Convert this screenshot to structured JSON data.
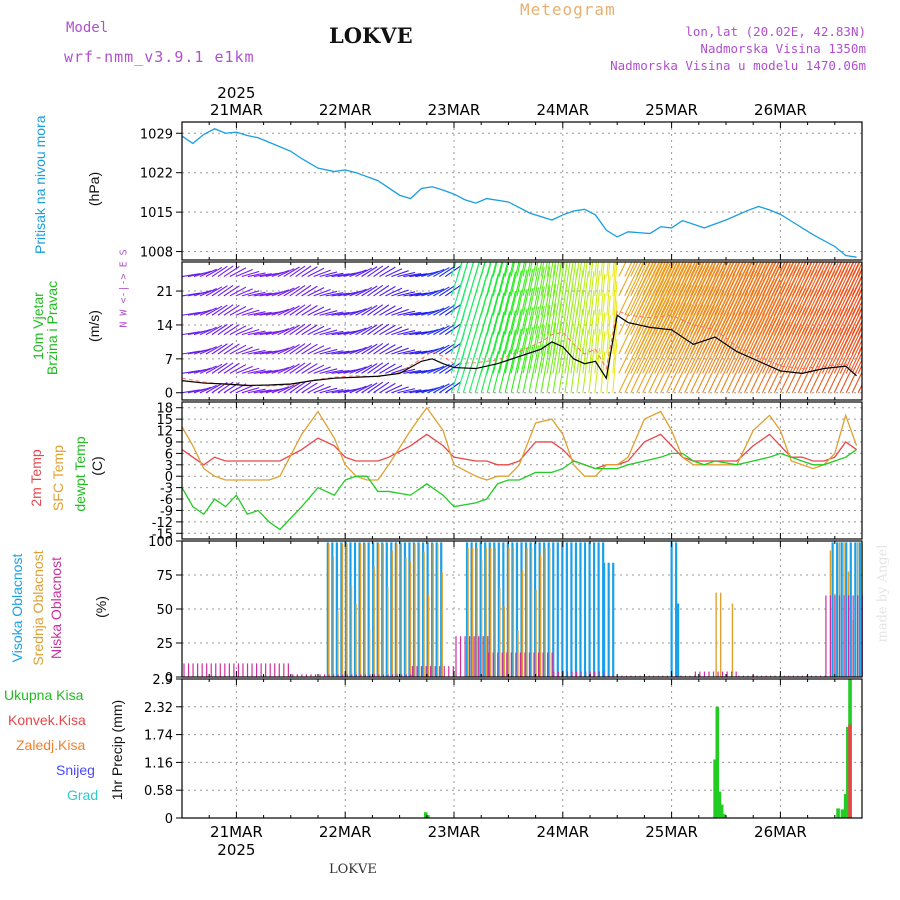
{
  "header": {
    "model_label": "Model",
    "model_name": "wrf-nmm_v3.9.1  e1km",
    "station": "LOKVE",
    "title": "Meteogram",
    "coords": "lon,lat (20.02E, 42.83N)",
    "elevation": "Nadmorska Visina 1350m",
    "model_elevation": "Nadmorska Visina u modelu 1470.06m"
  },
  "footer": {
    "station": "LOKVE",
    "credit": "made by Angel"
  },
  "time_axis": {
    "year": "2025",
    "days": [
      "21MAR",
      "22MAR",
      "23MAR",
      "24MAR",
      "25MAR",
      "26MAR"
    ]
  },
  "colors": {
    "pressure": "#1a9ee0",
    "temp2m": "#e8474a",
    "sfc_temp": "#e0a030",
    "dewpoint": "#22cc22",
    "high_cloud": "#1aa0e8",
    "mid_cloud": "#e0a030",
    "low_cloud": "#cc2ea0",
    "total_precip": "#22cc22",
    "conv_precip": "#e8474a",
    "freezing_rain": "#f08030",
    "snow": "#4848ff",
    "graupel": "#30c8c8",
    "header_purple": "#b050d0",
    "header_orange": "#e8b070"
  },
  "chart_data": [
    {
      "type": "line",
      "panel": "pressure",
      "ylabel": [
        "Pritisak na nivou mora",
        "(hPa)"
      ],
      "yticks": [
        1008,
        1015,
        1022,
        1029
      ],
      "ylim": [
        1006.5,
        1031
      ],
      "x_unit": "days since 21MAR 00UTC",
      "x": [
        -0.5,
        -0.4,
        -0.3,
        -0.2,
        -0.1,
        0.0,
        0.1,
        0.2,
        0.3,
        0.5,
        0.6,
        0.75,
        0.9,
        1.0,
        1.1,
        1.3,
        1.5,
        1.6,
        1.7,
        1.8,
        1.9,
        2.0,
        2.1,
        2.2,
        2.3,
        2.5,
        2.7,
        2.9,
        3.0,
        3.1,
        3.2,
        3.3,
        3.4,
        3.5,
        3.6,
        3.8,
        3.9,
        4.0,
        4.1,
        4.3,
        4.5,
        4.7,
        4.8,
        4.9,
        5.0,
        5.1,
        5.3,
        5.5,
        5.6,
        5.7
      ],
      "values": [
        1028.5,
        1027.2,
        1028.8,
        1029.8,
        1029.0,
        1029.2,
        1028.6,
        1028.2,
        1027.4,
        1025.8,
        1024.5,
        1022.8,
        1022.2,
        1022.5,
        1022.0,
        1020.6,
        1018.0,
        1017.4,
        1019.2,
        1019.5,
        1018.9,
        1018.2,
        1017.2,
        1016.6,
        1017.4,
        1016.8,
        1014.8,
        1013.6,
        1014.5,
        1015.2,
        1015.5,
        1014.5,
        1011.8,
        1010.6,
        1011.5,
        1011.2,
        1012.4,
        1012.2,
        1013.5,
        1012.2,
        1013.6,
        1015.3,
        1016.0,
        1015.4,
        1014.6,
        1013.4,
        1011.0,
        1008.9,
        1007.3,
        1007.0
      ]
    },
    {
      "type": "line",
      "panel": "wind",
      "ylabel": [
        "10m Vjetar",
        "Brzina i Pravac",
        "(m/s)"
      ],
      "direction_key": "N  W <-|-> E  S",
      "yticks": [
        0,
        7,
        14,
        21
      ],
      "ylim": [
        -1.5,
        27
      ],
      "x_unit": "days since 21MAR 00UTC",
      "x": [
        -0.5,
        -0.3,
        -0.1,
        0.1,
        0.3,
        0.5,
        0.7,
        0.9,
        1.1,
        1.3,
        1.5,
        1.7,
        1.8,
        1.9,
        2.0,
        2.2,
        2.4,
        2.6,
        2.8,
        2.9,
        3.0,
        3.1,
        3.2,
        3.3,
        3.4,
        3.5,
        3.6,
        3.8,
        4.0,
        4.2,
        4.4,
        4.6,
        4.8,
        5.0,
        5.2,
        5.4,
        5.6,
        5.7
      ],
      "series": [
        {
          "name": "speed",
          "values": [
            2.5,
            2.0,
            1.8,
            1.5,
            1.6,
            1.8,
            2.5,
            3.0,
            3.2,
            3.4,
            4.0,
            6.5,
            7.0,
            6.0,
            5.2,
            5.0,
            6.0,
            7.5,
            9.0,
            10.5,
            9.5,
            7.0,
            6.0,
            6.5,
            3.0,
            16.0,
            14.5,
            13.5,
            13.0,
            10.0,
            11.5,
            8.5,
            6.5,
            4.5,
            4.0,
            5.0,
            5.5,
            3.5
          ]
        },
        {
          "name": "gust",
          "values": [
            3.0,
            2.2,
            1.7,
            1.6,
            1.4,
            1.6,
            2.6,
            3.2,
            3.5,
            3.3,
            4.2,
            7.0,
            8.5,
            7.5,
            6.0,
            6.2,
            6.8,
            8.5,
            10.5,
            12.0,
            12.5,
            10.0,
            8.0,
            9.0,
            5.0,
            17.0,
            16.0,
            15.5,
            16.0,
            14.0,
            13.0,
            9.5,
            7.5,
            5.5,
            5.0,
            5.5,
            6.0,
            4.0
          ]
        }
      ]
    },
    {
      "type": "line",
      "panel": "temperature",
      "ylabel": [
        "2m Temp",
        "SFC Temp",
        "dewpt Temp",
        "(C)"
      ],
      "yticks": [
        -15,
        -12,
        -9,
        -6,
        -3,
        0,
        3,
        6,
        9,
        12,
        15,
        18
      ],
      "ylim": [
        -16.5,
        19.5
      ],
      "x_unit": "days since 21MAR 00UTC",
      "x": [
        -0.5,
        -0.4,
        -0.3,
        -0.2,
        -0.1,
        0.0,
        0.1,
        0.2,
        0.3,
        0.4,
        0.6,
        0.75,
        0.9,
        1.0,
        1.1,
        1.2,
        1.3,
        1.4,
        1.6,
        1.75,
        1.9,
        2.0,
        2.2,
        2.3,
        2.4,
        2.5,
        2.6,
        2.75,
        2.9,
        3.0,
        3.1,
        3.2,
        3.3,
        3.4,
        3.5,
        3.6,
        3.75,
        3.9,
        4.0,
        4.1,
        4.2,
        4.3,
        4.4,
        4.6,
        4.75,
        4.9,
        5.0,
        5.1,
        5.2,
        5.3,
        5.4,
        5.5,
        5.6,
        5.7
      ],
      "series": [
        {
          "name": "2m Temp",
          "values": [
            7,
            5,
            3,
            5,
            4,
            4,
            4,
            4,
            4,
            4,
            7,
            10,
            8,
            5,
            4,
            4,
            4,
            5,
            8,
            11,
            8,
            5,
            4,
            4,
            3,
            3,
            4,
            9,
            9,
            7,
            4,
            3,
            2,
            3,
            3,
            4,
            9,
            11,
            8,
            5,
            4,
            4,
            4,
            4,
            8,
            11,
            8,
            5,
            5,
            4,
            4,
            5,
            9,
            7
          ]
        },
        {
          "name": "SFC Temp",
          "values": [
            13,
            8,
            2,
            0,
            -1,
            -1,
            -1,
            -1,
            -1,
            0,
            11,
            17,
            10,
            3,
            0,
            -1,
            -1,
            3,
            12,
            18,
            12,
            3,
            0,
            -1,
            0,
            0,
            3,
            14,
            15,
            11,
            3,
            0,
            0,
            3,
            3,
            5,
            15,
            17,
            12,
            5,
            3,
            3,
            3,
            3,
            12,
            16,
            12,
            4,
            3,
            2,
            3,
            6,
            16,
            8
          ]
        },
        {
          "name": "dewpt Temp",
          "values": [
            -3,
            -8,
            -10,
            -6,
            -8,
            -5,
            -10,
            -9,
            -12,
            -14,
            -8,
            -3,
            -5,
            -1,
            0,
            0,
            -4,
            -4,
            -5,
            -2,
            -5,
            -8,
            -7,
            -6,
            -2,
            -1,
            -1,
            1,
            1,
            2,
            4,
            3,
            2,
            2,
            2,
            3,
            4,
            5,
            6,
            6,
            4,
            3,
            4,
            3,
            4,
            5,
            6,
            5,
            4,
            3,
            3,
            4,
            5,
            7
          ]
        }
      ]
    },
    {
      "type": "bar",
      "panel": "cloud_cover",
      "ylabel": [
        "Visoka Oblacnost",
        "Srednja Oblacnost",
        "Niska Oblacnost",
        "(%)"
      ],
      "yticks": [
        0,
        25,
        50,
        75,
        100
      ],
      "ylim": [
        0,
        100
      ],
      "x_unit": "days since 21MAR 00UTC",
      "series": [
        {
          "name": "Visoka Oblacnost",
          "ranges": [
            [
              0.84,
              1.92,
              99
            ],
            [
              2.12,
              3.38,
              99
            ],
            [
              3.38,
              3.48,
              84
            ],
            [
              4.0,
              4.06,
              99
            ],
            [
              4.06,
              4.1,
              54
            ],
            [
              5.48,
              5.75,
              99
            ]
          ]
        },
        {
          "name": "Srednja Oblacnost",
          "ranges": [
            [
              0.84,
              1.92,
              98
            ],
            [
              2.12,
              2.9,
              95
            ],
            [
              4.4,
              4.46,
              62
            ],
            [
              4.55,
              4.58,
              54
            ],
            [
              5.45,
              5.75,
              99
            ]
          ]
        },
        {
          "name": "Niska Oblacnost",
          "ranges": [
            [
              -0.5,
              0.5,
              10
            ],
            [
              0.5,
              1.6,
              2
            ],
            [
              1.6,
              2.0,
              8
            ],
            [
              2.0,
              2.3,
              30
            ],
            [
              2.3,
              2.9,
              18
            ],
            [
              2.9,
              3.4,
              4
            ],
            [
              3.4,
              4.2,
              1
            ],
            [
              4.2,
              4.6,
              4
            ],
            [
              4.6,
              5.4,
              1
            ],
            [
              5.4,
              5.75,
              60
            ]
          ]
        }
      ]
    },
    {
      "type": "bar",
      "panel": "precipitation",
      "ylabel": [
        "Ukupna Kisa",
        "Konvek.Kisa",
        "Zaledj.Kisa",
        "Snijeg",
        "Grad",
        "1hr Precip (mm)"
      ],
      "yticks": [
        0,
        0.58,
        1.16,
        1.74,
        2.32,
        2.9
      ],
      "ylim": [
        0,
        2.9
      ],
      "x_unit": "days since 21MAR 00UTC",
      "series": [
        {
          "name": "Ukupna Kisa",
          "x": [
            1.74,
            1.76,
            4.4,
            4.42,
            4.44,
            4.46,
            4.48,
            5.53,
            5.57,
            5.6,
            5.62,
            5.64
          ],
          "values": [
            0.12,
            0.06,
            1.22,
            2.32,
            0.55,
            0.28,
            0.08,
            0.2,
            0.18,
            0.5,
            1.9,
            2.9
          ]
        },
        {
          "name": "Konvek.Kisa",
          "x": [
            5.64
          ],
          "values": [
            1.95
          ]
        },
        {
          "name": "Zaledj.Kisa",
          "x": [],
          "values": []
        },
        {
          "name": "Snijeg",
          "x": [],
          "values": []
        },
        {
          "name": "Grad",
          "x": [],
          "values": []
        }
      ]
    }
  ]
}
